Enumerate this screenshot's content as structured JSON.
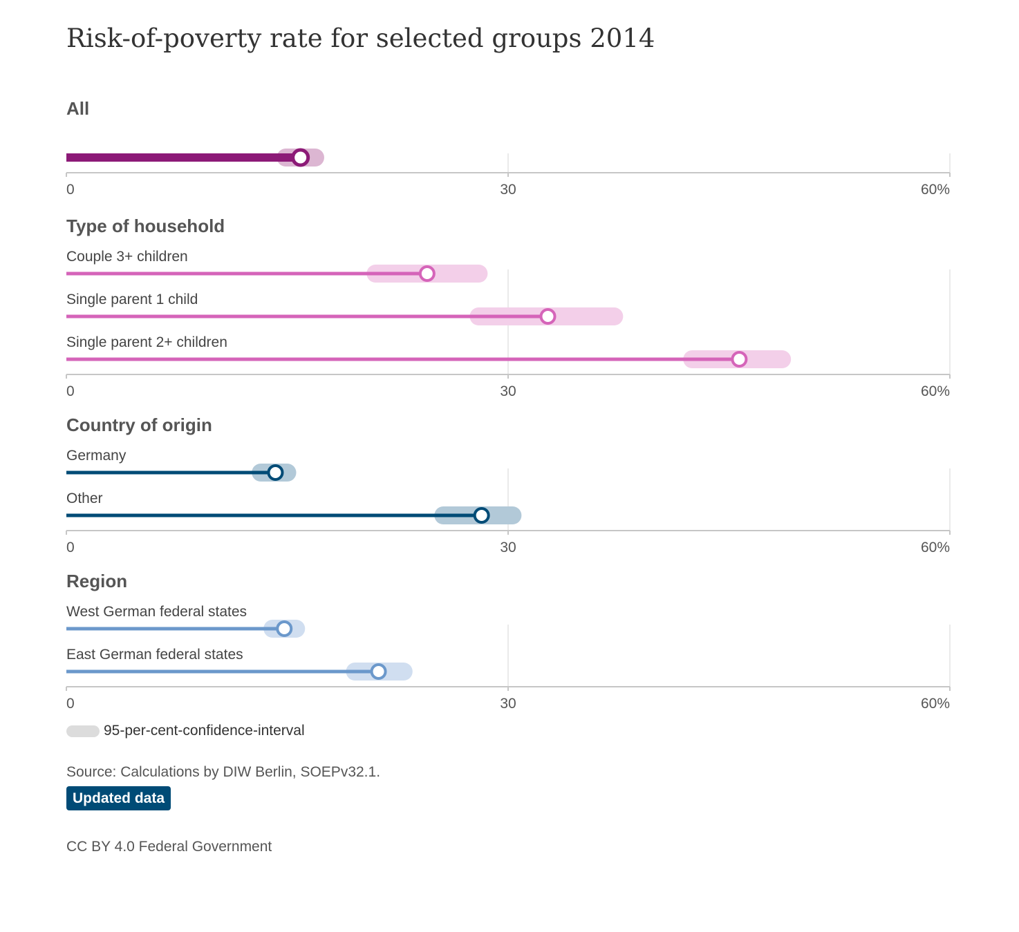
{
  "chart_data": {
    "type": "dot-range",
    "title": "Risk-of-poverty rate for selected groups 2014",
    "unit": "%",
    "xlim": [
      0,
      60
    ],
    "ticks": [
      "0",
      "30",
      "60%"
    ],
    "tick_values": [
      0,
      30,
      60
    ],
    "groups": [
      {
        "title": "All",
        "color": "#8c1a77",
        "ci_color": "#dcb6d2",
        "items": [
          {
            "label": "",
            "value": 15.9,
            "ci_low": 14.9,
            "ci_high": 16.9
          }
        ]
      },
      {
        "title": "Type of household",
        "color": "#d564b9",
        "ci_color": "#f3cfe9",
        "items": [
          {
            "label": "Couple 3+ children",
            "value": 24.5,
            "ci_low": 21.0,
            "ci_high": 28.0
          },
          {
            "label": "Single parent 1 child",
            "value": 32.7,
            "ci_low": 28.0,
            "ci_high": 37.2
          },
          {
            "label": "Single parent 2+ children",
            "value": 45.7,
            "ci_low": 42.5,
            "ci_high": 48.6
          }
        ]
      },
      {
        "title": "Country of origin",
        "color": "#004b76",
        "ci_color": "#b2c9d8",
        "items": [
          {
            "label": "Germany",
            "value": 14.2,
            "ci_low": 13.2,
            "ci_high": 15.0
          },
          {
            "label": "Other",
            "value": 28.2,
            "ci_low": 25.6,
            "ci_high": 30.3
          }
        ]
      },
      {
        "title": "Region",
        "color": "#6b98cb",
        "ci_color": "#d0def0",
        "items": [
          {
            "label": "West German federal states",
            "value": 14.8,
            "ci_low": 14.0,
            "ci_high": 15.6
          },
          {
            "label": "East German federal states",
            "value": 21.2,
            "ci_low": 19.6,
            "ci_high": 22.9
          }
        ]
      }
    ]
  },
  "legend": {
    "ci_label": "95-per-cent-confidence-interval",
    "ci_color": "#dcdcdc"
  },
  "footer": {
    "source": "Source: Calculations by DIW Berlin, SOEPv32.1.",
    "update_button": "Updated data",
    "update_button_color": "#004b76",
    "license": "CC BY 4.0 Federal Government"
  }
}
